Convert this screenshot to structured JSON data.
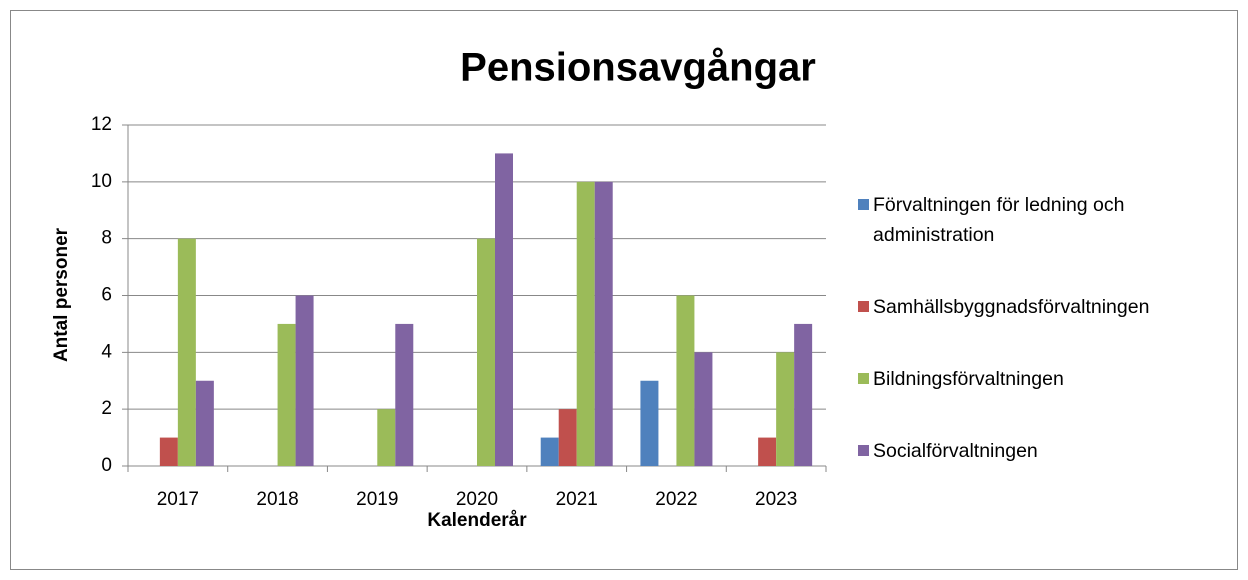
{
  "chart_data": {
    "type": "bar",
    "title": "Pensionsavgångar",
    "x_label": "Kalenderår",
    "y_label": "Antal personer",
    "categories": [
      "2017",
      "2018",
      "2019",
      "2020",
      "2021",
      "2022",
      "2023"
    ],
    "series": [
      {
        "name": "Förvaltningen för ledning och administration",
        "color": "#4f81bd",
        "values": [
          0,
          0,
          0,
          0,
          1,
          3,
          0
        ]
      },
      {
        "name": "Samhällsbyggnadsförvaltningen",
        "color": "#c0504d",
        "values": [
          1,
          0,
          0,
          0,
          2,
          0,
          1
        ]
      },
      {
        "name": "Bildningsförvaltningen",
        "color": "#9bbb59",
        "values": [
          8,
          5,
          2,
          8,
          10,
          6,
          4
        ]
      },
      {
        "name": "Socialförvaltningen",
        "color": "#8064a2",
        "values": [
          3,
          6,
          5,
          11,
          10,
          4,
          5
        ]
      }
    ],
    "ylim": [
      0,
      12
    ],
    "yticks": [
      0,
      2,
      4,
      6,
      8,
      10,
      12
    ],
    "grid": true,
    "legend": "right"
  }
}
